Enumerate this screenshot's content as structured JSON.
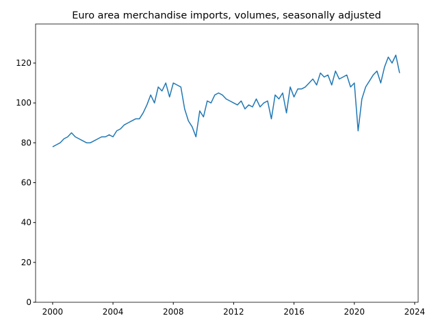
{
  "chart_data": {
    "type": "line",
    "title": "Euro area merchandise imports, volumes, seasonally adjusted",
    "x": [
      2000.0,
      2000.25,
      2000.5,
      2000.75,
      2001.0,
      2001.25,
      2001.5,
      2001.75,
      2002.0,
      2002.25,
      2002.5,
      2002.75,
      2003.0,
      2003.25,
      2003.5,
      2003.75,
      2004.0,
      2004.25,
      2004.5,
      2004.75,
      2005.0,
      2005.25,
      2005.5,
      2005.75,
      2006.0,
      2006.25,
      2006.5,
      2006.75,
      2007.0,
      2007.25,
      2007.5,
      2007.75,
      2008.0,
      2008.25,
      2008.5,
      2008.75,
      2009.0,
      2009.25,
      2009.5,
      2009.75,
      2010.0,
      2010.25,
      2010.5,
      2010.75,
      2011.0,
      2011.25,
      2011.5,
      2011.75,
      2012.0,
      2012.25,
      2012.5,
      2012.75,
      2013.0,
      2013.25,
      2013.5,
      2013.75,
      2014.0,
      2014.25,
      2014.5,
      2014.75,
      2015.0,
      2015.25,
      2015.5,
      2015.75,
      2016.0,
      2016.25,
      2016.5,
      2016.75,
      2017.0,
      2017.25,
      2017.5,
      2017.75,
      2018.0,
      2018.25,
      2018.5,
      2018.75,
      2019.0,
      2019.25,
      2019.5,
      2019.75,
      2020.0,
      2020.25,
      2020.5,
      2020.75,
      2021.0,
      2021.25,
      2021.5,
      2021.75,
      2022.0,
      2022.25,
      2022.5,
      2022.75,
      2023.0
    ],
    "series": [
      {
        "color": "#1f77b4",
        "values": [
          78,
          79,
          80,
          82,
          83,
          85,
          83,
          82,
          81,
          80,
          80,
          81,
          82,
          83,
          83,
          84,
          83,
          86,
          87,
          89,
          90,
          91,
          92,
          92,
          95,
          99,
          104,
          100,
          108,
          106,
          110,
          103,
          110,
          109,
          108,
          97,
          91,
          88,
          83,
          96,
          93,
          101,
          100,
          104,
          105,
          104,
          102,
          101,
          100,
          99,
          101,
          97,
          99,
          98,
          102,
          98,
          100,
          101,
          92,
          104,
          102,
          105,
          95,
          108,
          103,
          107,
          107,
          108,
          110,
          112,
          109,
          115,
          113,
          114,
          109,
          116,
          112,
          113,
          114,
          108,
          110,
          86,
          102,
          108,
          111,
          114,
          116,
          110,
          118,
          123,
          120,
          124,
          115
        ]
      }
    ],
    "xlim": [
      1998.87,
      2024.23
    ],
    "ylim": [
      0,
      139.6
    ],
    "xticks": [
      2000,
      2004,
      2008,
      2012,
      2016,
      2020,
      2024
    ],
    "yticks": [
      0,
      20,
      40,
      60,
      80,
      100,
      120
    ]
  }
}
